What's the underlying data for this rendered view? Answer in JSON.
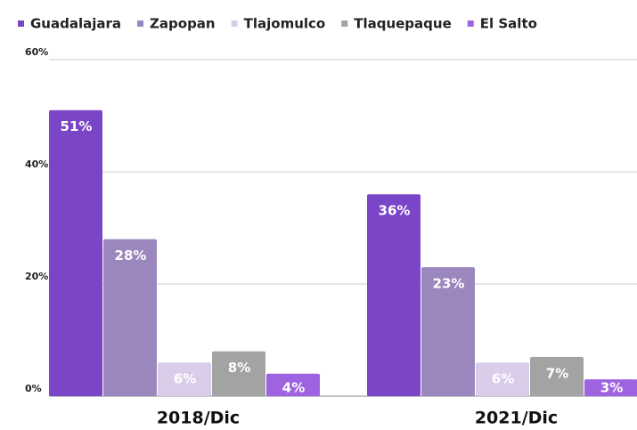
{
  "chart_data": {
    "type": "bar",
    "categories": [
      "2018/Dic",
      "2021/Dic"
    ],
    "series": [
      {
        "name": "Guadalajara",
        "color": "#7b45c8",
        "values": [
          51,
          36
        ],
        "value_labels": [
          "51%",
          "36%"
        ]
      },
      {
        "name": "Zapopan",
        "color": "#9b87bd",
        "values": [
          28,
          23
        ],
        "value_labels": [
          "28%",
          "23%"
        ]
      },
      {
        "name": "Tlajomulco",
        "color": "#d9cdea",
        "values": [
          6,
          6
        ],
        "value_labels": [
          "6%",
          "6%"
        ]
      },
      {
        "name": "Tlaquepaque",
        "color": "#a3a3a3",
        "values": [
          8,
          7
        ],
        "value_labels": [
          "8%",
          "7%"
        ]
      },
      {
        "name": "El Salto",
        "color": "#9d63e0",
        "values": [
          4,
          3
        ],
        "value_labels": [
          "4%",
          "3%"
        ]
      }
    ],
    "ylim": [
      0,
      60
    ],
    "yticks": [
      {
        "value": 0,
        "label": "0%"
      },
      {
        "value": 20,
        "label": "20%"
      },
      {
        "value": 40,
        "label": "40%"
      },
      {
        "value": 60,
        "label": "60%"
      }
    ],
    "grid": true,
    "legend": "top"
  }
}
